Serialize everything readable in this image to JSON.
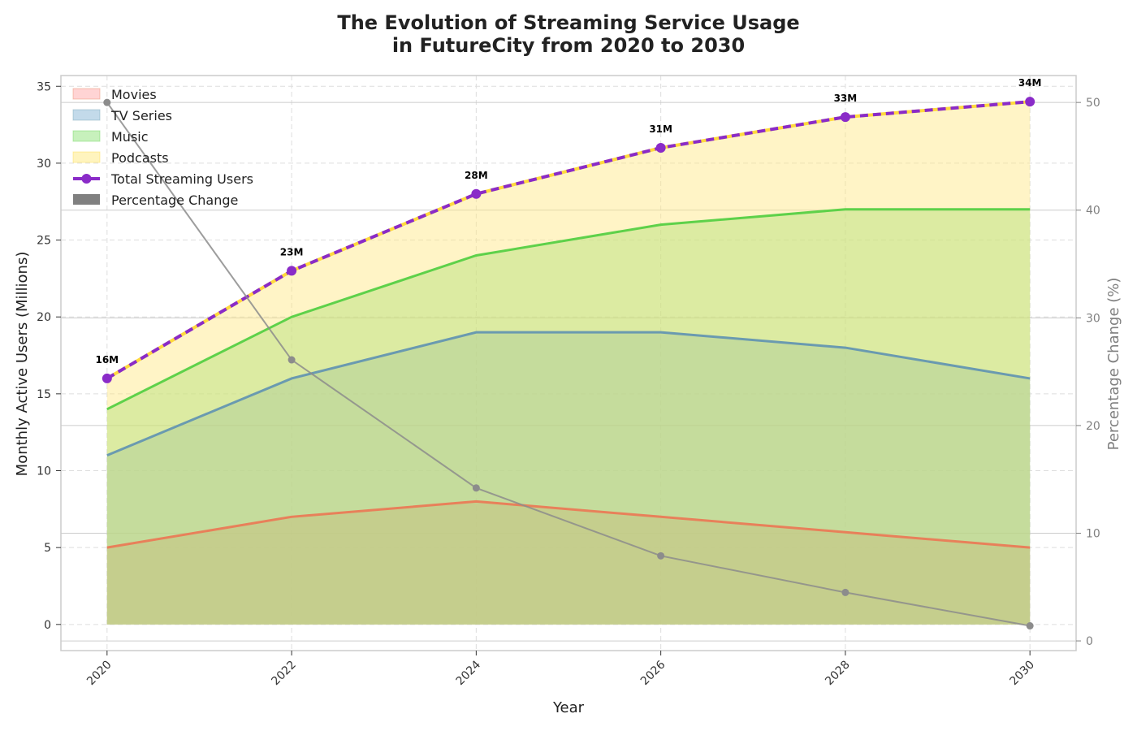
{
  "chart_data": {
    "type": "area",
    "title": "The Evolution of Streaming Service Usage\nin FutureCity from 2020 to 2030",
    "xlabel": "Year",
    "ylabel": "Monthly Active Users (Millions)",
    "y2label": "Percentage Change (%)",
    "x": [
      2020,
      2022,
      2024,
      2026,
      2028,
      2030
    ],
    "xticks": [
      "2020",
      "2022",
      "2024",
      "2026",
      "2028",
      "2030"
    ],
    "ylim": [
      -1.7,
      35.7
    ],
    "yticks": [
      "0",
      "5",
      "10",
      "15",
      "20",
      "25",
      "30",
      "35"
    ],
    "y2lim": [
      -0.9,
      52.5
    ],
    "y2ticks": [
      "0",
      "10",
      "20",
      "30",
      "40",
      "50"
    ],
    "grid": true,
    "legend_position": "top-left",
    "series": [
      {
        "name": "Movies",
        "values": [
          5,
          7,
          8,
          7,
          6,
          5
        ],
        "color": "#e8805a",
        "fill": "#ffcccc"
      },
      {
        "name": "TV Series",
        "values": [
          11,
          16,
          19,
          19,
          18,
          16
        ],
        "color": "#6a9ab0",
        "fill": "#b8d4e6"
      },
      {
        "name": "Music",
        "values": [
          14,
          20,
          24,
          26,
          27,
          27
        ],
        "color": "#5ed14a",
        "fill": "#bdeeb0"
      },
      {
        "name": "Podcasts",
        "values": [
          16,
          23,
          28,
          31,
          33,
          34
        ],
        "color": "#ffd93d",
        "fill": "#fff2b3"
      },
      {
        "name": "Total Streaming Users",
        "values": [
          16,
          23,
          28,
          31,
          33,
          34
        ],
        "color": "#8a2bc8"
      },
      {
        "name": "Percentage Change",
        "axis": "right",
        "values": [
          50,
          26.1,
          14.2,
          7.9,
          4.5,
          1.4
        ],
        "color": "#8c8c8c"
      }
    ],
    "data_labels": [
      "16M",
      "23M",
      "28M",
      "31M",
      "33M",
      "34M"
    ]
  }
}
